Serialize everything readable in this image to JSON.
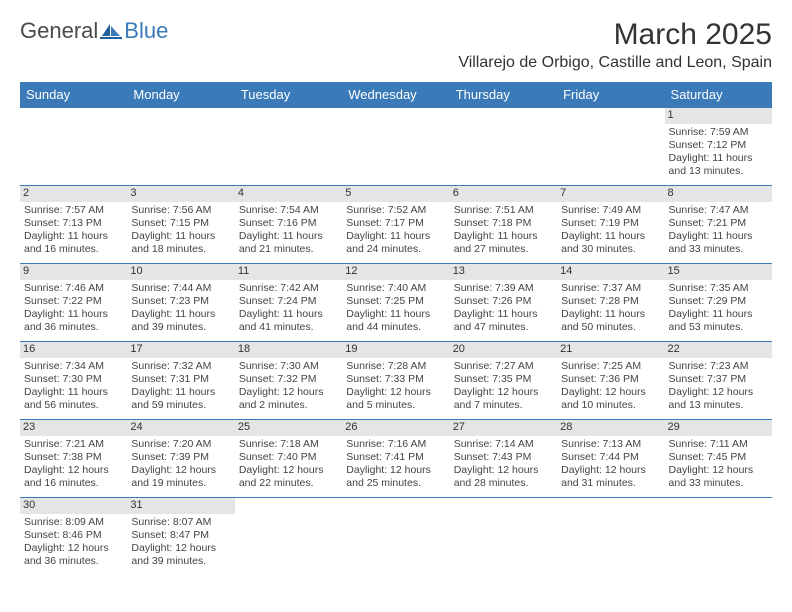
{
  "logo": {
    "general": "General",
    "blue": "Blue"
  },
  "header": {
    "month_title": "March 2025",
    "location": "Villarejo de Orbigo, Castille and Leon, Spain"
  },
  "colors": {
    "header_bg": "#3a7ab8",
    "header_text": "#ffffff",
    "daynum_bg": "#e5e5e5",
    "border": "#3a7ab8"
  },
  "weekdays": [
    "Sunday",
    "Monday",
    "Tuesday",
    "Wednesday",
    "Thursday",
    "Friday",
    "Saturday"
  ],
  "first_weekday_index": 6,
  "days": [
    {
      "n": 1,
      "sunrise": "7:59 AM",
      "sunset": "7:12 PM",
      "daylight": "11 hours and 13 minutes."
    },
    {
      "n": 2,
      "sunrise": "7:57 AM",
      "sunset": "7:13 PM",
      "daylight": "11 hours and 16 minutes."
    },
    {
      "n": 3,
      "sunrise": "7:56 AM",
      "sunset": "7:15 PM",
      "daylight": "11 hours and 18 minutes."
    },
    {
      "n": 4,
      "sunrise": "7:54 AM",
      "sunset": "7:16 PM",
      "daylight": "11 hours and 21 minutes."
    },
    {
      "n": 5,
      "sunrise": "7:52 AM",
      "sunset": "7:17 PM",
      "daylight": "11 hours and 24 minutes."
    },
    {
      "n": 6,
      "sunrise": "7:51 AM",
      "sunset": "7:18 PM",
      "daylight": "11 hours and 27 minutes."
    },
    {
      "n": 7,
      "sunrise": "7:49 AM",
      "sunset": "7:19 PM",
      "daylight": "11 hours and 30 minutes."
    },
    {
      "n": 8,
      "sunrise": "7:47 AM",
      "sunset": "7:21 PM",
      "daylight": "11 hours and 33 minutes."
    },
    {
      "n": 9,
      "sunrise": "7:46 AM",
      "sunset": "7:22 PM",
      "daylight": "11 hours and 36 minutes."
    },
    {
      "n": 10,
      "sunrise": "7:44 AM",
      "sunset": "7:23 PM",
      "daylight": "11 hours and 39 minutes."
    },
    {
      "n": 11,
      "sunrise": "7:42 AM",
      "sunset": "7:24 PM",
      "daylight": "11 hours and 41 minutes."
    },
    {
      "n": 12,
      "sunrise": "7:40 AM",
      "sunset": "7:25 PM",
      "daylight": "11 hours and 44 minutes."
    },
    {
      "n": 13,
      "sunrise": "7:39 AM",
      "sunset": "7:26 PM",
      "daylight": "11 hours and 47 minutes."
    },
    {
      "n": 14,
      "sunrise": "7:37 AM",
      "sunset": "7:28 PM",
      "daylight": "11 hours and 50 minutes."
    },
    {
      "n": 15,
      "sunrise": "7:35 AM",
      "sunset": "7:29 PM",
      "daylight": "11 hours and 53 minutes."
    },
    {
      "n": 16,
      "sunrise": "7:34 AM",
      "sunset": "7:30 PM",
      "daylight": "11 hours and 56 minutes."
    },
    {
      "n": 17,
      "sunrise": "7:32 AM",
      "sunset": "7:31 PM",
      "daylight": "11 hours and 59 minutes."
    },
    {
      "n": 18,
      "sunrise": "7:30 AM",
      "sunset": "7:32 PM",
      "daylight": "12 hours and 2 minutes."
    },
    {
      "n": 19,
      "sunrise": "7:28 AM",
      "sunset": "7:33 PM",
      "daylight": "12 hours and 5 minutes."
    },
    {
      "n": 20,
      "sunrise": "7:27 AM",
      "sunset": "7:35 PM",
      "daylight": "12 hours and 7 minutes."
    },
    {
      "n": 21,
      "sunrise": "7:25 AM",
      "sunset": "7:36 PM",
      "daylight": "12 hours and 10 minutes."
    },
    {
      "n": 22,
      "sunrise": "7:23 AM",
      "sunset": "7:37 PM",
      "daylight": "12 hours and 13 minutes."
    },
    {
      "n": 23,
      "sunrise": "7:21 AM",
      "sunset": "7:38 PM",
      "daylight": "12 hours and 16 minutes."
    },
    {
      "n": 24,
      "sunrise": "7:20 AM",
      "sunset": "7:39 PM",
      "daylight": "12 hours and 19 minutes."
    },
    {
      "n": 25,
      "sunrise": "7:18 AM",
      "sunset": "7:40 PM",
      "daylight": "12 hours and 22 minutes."
    },
    {
      "n": 26,
      "sunrise": "7:16 AM",
      "sunset": "7:41 PM",
      "daylight": "12 hours and 25 minutes."
    },
    {
      "n": 27,
      "sunrise": "7:14 AM",
      "sunset": "7:43 PM",
      "daylight": "12 hours and 28 minutes."
    },
    {
      "n": 28,
      "sunrise": "7:13 AM",
      "sunset": "7:44 PM",
      "daylight": "12 hours and 31 minutes."
    },
    {
      "n": 29,
      "sunrise": "7:11 AM",
      "sunset": "7:45 PM",
      "daylight": "12 hours and 33 minutes."
    },
    {
      "n": 30,
      "sunrise": "8:09 AM",
      "sunset": "8:46 PM",
      "daylight": "12 hours and 36 minutes."
    },
    {
      "n": 31,
      "sunrise": "8:07 AM",
      "sunset": "8:47 PM",
      "daylight": "12 hours and 39 minutes."
    }
  ],
  "labels": {
    "sunrise": "Sunrise:",
    "sunset": "Sunset:",
    "daylight": "Daylight:"
  }
}
